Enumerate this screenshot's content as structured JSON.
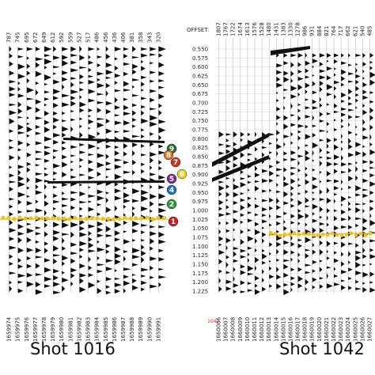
{
  "panels": [
    {
      "title": "Shot 1016",
      "offsets": [
        "787",
        "745",
        "695",
        "672",
        "649",
        "612",
        "592",
        "559",
        "527",
        "517",
        "486",
        "456",
        "436",
        "406",
        "381",
        "358",
        "343",
        "320"
      ],
      "traces": [
        "1659974",
        "1659975",
        "1659976",
        "1659977",
        "1659978",
        "1659979",
        "1659980",
        "1659981",
        "1659982",
        "1659983",
        "1659984",
        "1659985",
        "1659986",
        "1659987",
        "1659988",
        "1659989",
        "1659990",
        "1659991"
      ]
    },
    {
      "title": "Shot 1042",
      "offset_label": "OFFSET:",
      "offsets": [
        "1807",
        "1767",
        "1722",
        "1674",
        "1613",
        "1576",
        "1528",
        "1480",
        "1431",
        "1383",
        "1330",
        "1278",
        "986",
        "931",
        "884",
        "821",
        "764",
        "717",
        "662",
        "621",
        "540",
        "485"
      ],
      "times": [
        "0.550",
        "0.575",
        "0.600",
        "0.625",
        "0.650",
        "0.675",
        "0.700",
        "0.725",
        "0.750",
        "0.775",
        "0.800",
        "0.825",
        "0.850",
        "0.875",
        "0.900",
        "0.925",
        "0.950",
        "0.975",
        "1.000",
        "1.025",
        "1.050",
        "1.075",
        "1.100",
        "1.125",
        "1.150",
        "1.175",
        "1.200",
        "1.225"
      ],
      "traces": [
        "1660006",
        "1660007",
        "1660008",
        "1660009",
        "1660010",
        "1660011",
        "1660012",
        "1660013",
        "1660014",
        "1660015",
        "1660016",
        "1660017",
        "1660018",
        "1660019",
        "1660020",
        "1660021",
        "1660022",
        "1660023",
        "1660024",
        "1660025",
        "1660026",
        "1660027"
      ]
    }
  ],
  "center_label": "1042",
  "circles": [
    {
      "label": "9",
      "color": "#2e6b2e"
    },
    {
      "label": "8",
      "color": "#e07020"
    },
    {
      "label": "7",
      "color": "#d03020"
    },
    {
      "label": "6",
      "color": "#e8d020"
    },
    {
      "label": "5",
      "color": "#7a2c8c"
    },
    {
      "label": "4",
      "color": "#2070c0"
    },
    {
      "label": "2",
      "color": "#2a9a3a"
    },
    {
      "label": "1",
      "color": "#c82020"
    }
  ]
}
